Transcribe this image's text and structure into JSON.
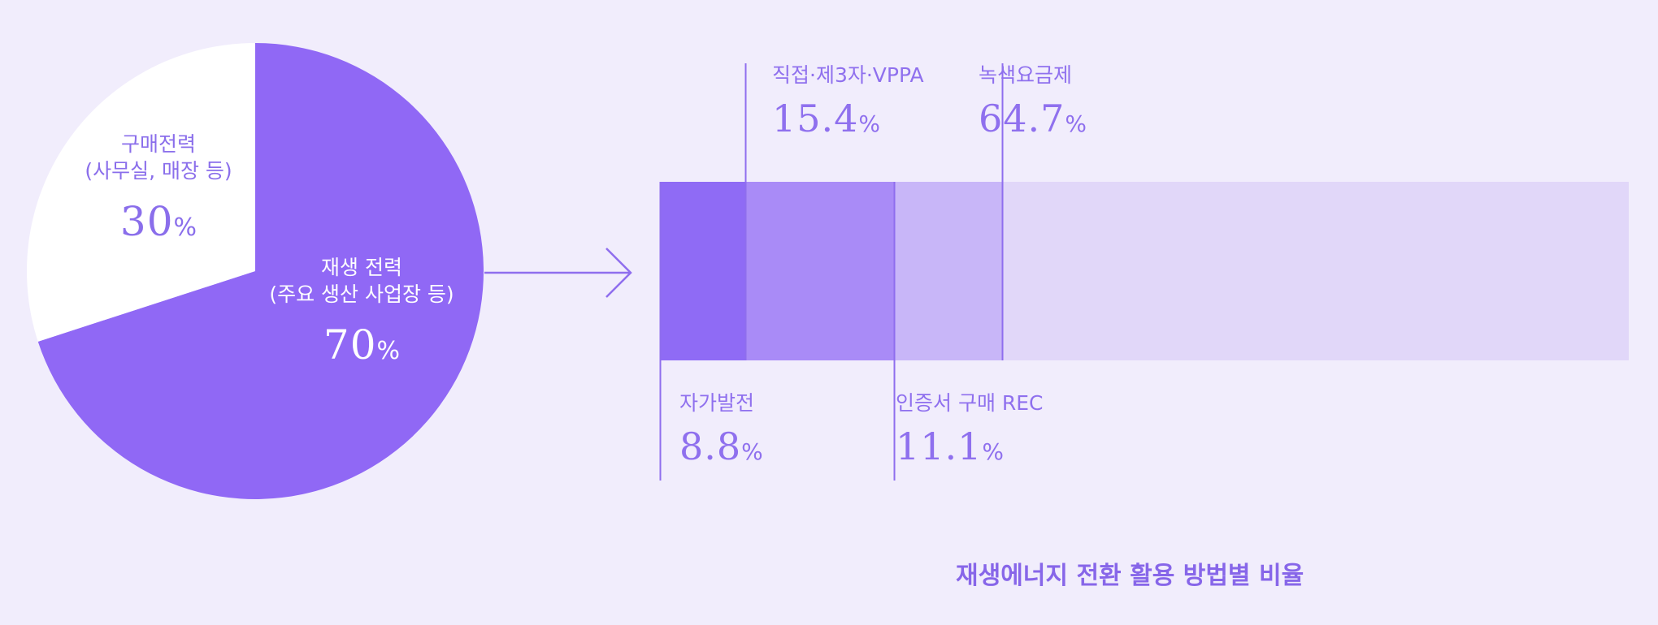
{
  "chart_data": [
    {
      "type": "pie",
      "slices": [
        {
          "label_lines": [
            "재생 전력",
            "(주요 생산 사업장 등)"
          ],
          "value": 70,
          "display": "70",
          "unit": "%",
          "color": "#9068F5"
        },
        {
          "label_lines": [
            "구매전력",
            "(사무실, 매장 등)"
          ],
          "value": 30,
          "display": "30",
          "unit": "%",
          "color": "#FFFFFF"
        }
      ]
    },
    {
      "type": "bar",
      "stacked": true,
      "orientation": "horizontal",
      "title": "재생에너지 전환 활용 방법별 비율",
      "segments": [
        {
          "label": "자가발전",
          "value": 8.8,
          "display": "8.8",
          "unit": "%",
          "color": "#8F6BF5",
          "label_position": "bottom"
        },
        {
          "label": "직접·제3자·VPPA",
          "value": 15.4,
          "display": "15.4",
          "unit": "%",
          "color": "#A98BF7",
          "label_position": "top"
        },
        {
          "label": "인증서 구매 REC",
          "value": 11.1,
          "display": "11.1",
          "unit": "%",
          "color": "#C8B6F8",
          "label_position": "bottom"
        },
        {
          "label": "녹색요금제",
          "value": 64.7,
          "display": "64.7",
          "unit": "%",
          "color": "#E1D7F9",
          "label_position": "top"
        }
      ]
    }
  ],
  "colors": {
    "background": "#F1EDFC",
    "accent": "#8F6BF5",
    "leader_line": "#8F6EEE"
  }
}
